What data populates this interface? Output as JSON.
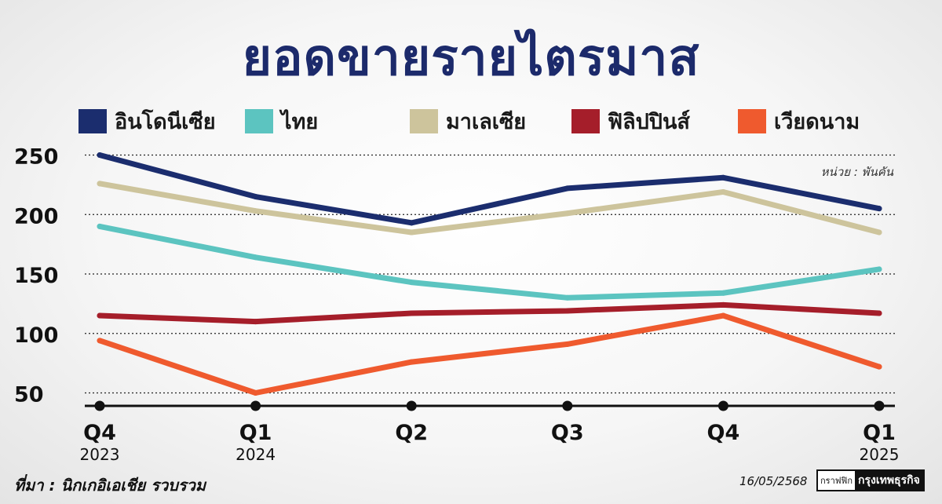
{
  "title": "ยอดขายรายไตรมาส",
  "unit_note": "หน่วย : พันคัน",
  "source": "ที่มา : นิกเกอิเอเชีย รวบรวม",
  "date": "16/05/2568",
  "credit": {
    "small": "กราฟฟิก",
    "brand": "กรุงเทพธุรกิจ"
  },
  "colors": {
    "indonesia": "#1b2d6e",
    "thailand": "#5cc4c0",
    "malaysia": "#cdc49c",
    "philippines": "#a51e2a",
    "vietnam": "#ef5a2e"
  },
  "chart_data": {
    "type": "line",
    "title": "ยอดขายรายไตรมาส",
    "unit": "หน่วย : พันคัน",
    "x_quarters": [
      "Q4",
      "Q1",
      "Q2",
      "Q3",
      "Q4",
      "Q1"
    ],
    "x_years": [
      "2023",
      "2024",
      "",
      "",
      "",
      "2025"
    ],
    "ylim": [
      45,
      255
    ],
    "yticks": [
      50,
      100,
      150,
      200,
      250
    ],
    "grid": "dotted horizontal",
    "legend_position": "top",
    "series": [
      {
        "key": "indonesia",
        "name": "อินโดนีเซีย",
        "values": [
          250,
          215,
          193,
          222,
          231,
          205
        ]
      },
      {
        "key": "thailand",
        "name": "ไทย",
        "values": [
          190,
          164,
          143,
          130,
          134,
          154
        ]
      },
      {
        "key": "malaysia",
        "name": "มาเลเซีย",
        "values": [
          226,
          203,
          185,
          201,
          219,
          185
        ]
      },
      {
        "key": "philippines",
        "name": "ฟิลิปปินส์",
        "values": [
          115,
          110,
          117,
          119,
          124,
          117
        ]
      },
      {
        "key": "vietnam",
        "name": "เวียดนาม",
        "values": [
          94,
          50,
          76,
          91,
          115,
          72
        ]
      }
    ]
  }
}
